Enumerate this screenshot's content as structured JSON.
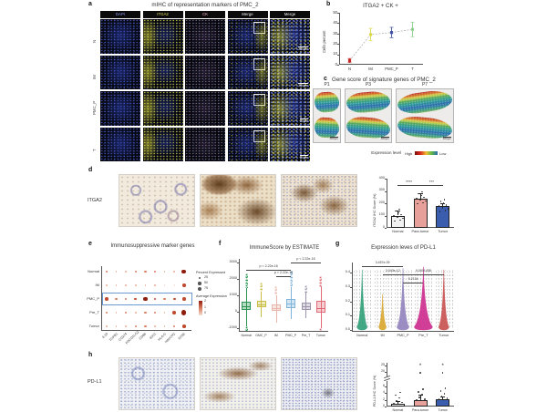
{
  "panel_a": {
    "label": "a",
    "title": "mIHC of representation markers of PMC_2",
    "columns": [
      "DAPI",
      "ITGA2",
      "CK",
      "Merge",
      "Merge"
    ],
    "column_colors": [
      "#8a97f0",
      "#e3e35a",
      "#f2b9c6",
      "#f5f5f5",
      "#f5f5f5"
    ],
    "rows": [
      "N",
      "IM",
      "PMC_P",
      "T"
    ],
    "scale_bars": [
      "200μm",
      "200μm",
      "20μm",
      "20μm"
    ]
  },
  "panel_b": {
    "label": "b",
    "title": "ITGA2 + CK +",
    "ylabel": "Cells percent",
    "chart": {
      "type": "scatter",
      "categories": [
        "N",
        "IM",
        "PMC_P",
        "T"
      ],
      "values": [
        4,
        29,
        31,
        34
      ],
      "errors": [
        2,
        6,
        5,
        7
      ],
      "colors": [
        "#c62828",
        "#ddd94e",
        "#3f51a5",
        "#8fcf8f"
      ],
      "yticks": [
        0,
        10,
        20,
        30,
        40,
        50
      ],
      "ylim": [
        0,
        50
      ]
    }
  },
  "panel_c": {
    "label": "c",
    "title": "Gene score of signature genes of PMC_2",
    "samples": [
      "P1",
      "P3",
      "P7"
    ],
    "scale_bar": "400μm",
    "legend_label": "Expression level",
    "legend_high": "High",
    "legend_low": "Low"
  },
  "panel_d": {
    "label": "d",
    "marker": "ITGA2",
    "chart": {
      "type": "bar",
      "ylabel": "ITGA2 IHC Score (%)",
      "categories": [
        "Normal",
        "Para-tumor",
        "Tumor"
      ],
      "values": [
        100,
        240,
        175
      ],
      "errors": [
        40,
        45,
        25
      ],
      "colors": [
        "#f2f2f2",
        "#e8a09a",
        "#3a5dae"
      ],
      "yticks": [
        0,
        100,
        200,
        300,
        400
      ],
      "ylim": [
        0,
        400
      ],
      "significance": [
        {
          "from": 0,
          "to": 1,
          "label": "****"
        },
        {
          "from": 1,
          "to": 2,
          "label": "***"
        }
      ]
    }
  },
  "panel_e": {
    "label": "e",
    "title": "Immunosuppressive marker genes",
    "rows": [
      "Normal",
      "IM",
      "PMC_P",
      "Pre_T",
      "Tumor"
    ],
    "highlight_row": "PMC_P",
    "genes": [
      "IL10",
      "TGFB1",
      "CD274",
      "PDCD1LG2",
      "CD86",
      "IDO1",
      "HLA-G",
      "HAVCR2",
      "NT5E"
    ],
    "dot_sizes": [
      [
        1.2,
        0.8,
        0.8,
        1.2,
        1.2,
        1.0,
        0.8,
        0.8,
        2.4
      ],
      [
        0.8,
        0.8,
        0.8,
        0.8,
        0.8,
        0.8,
        0.6,
        0.6,
        1.8
      ],
      [
        1.8,
        1.2,
        1.2,
        1.4,
        2.2,
        1.4,
        1.2,
        1.4,
        1.8
      ],
      [
        1.2,
        0.8,
        1.2,
        0.8,
        1.2,
        1.2,
        0.8,
        1.8,
        2.6
      ],
      [
        0.8,
        0.8,
        0.8,
        1.2,
        1.2,
        0.8,
        0.8,
        1.2,
        1.8
      ]
    ],
    "dot_colors": [
      [
        2,
        1,
        1,
        2,
        2,
        2,
        1,
        1,
        4
      ],
      [
        1,
        1,
        1,
        1,
        1,
        1,
        0,
        0,
        3
      ],
      [
        3,
        2,
        2,
        3,
        4,
        3,
        2,
        3,
        3
      ],
      [
        2,
        1,
        2,
        1,
        2,
        2,
        1,
        3,
        4
      ],
      [
        1,
        1,
        1,
        2,
        2,
        1,
        1,
        2,
        3
      ]
    ],
    "color_ramp": [
      "#f3ddd3",
      "#edb39e",
      "#d97d5f",
      "#c04a2e",
      "#8f1d0d"
    ],
    "legend": {
      "percent_title": "Percent Expressed",
      "percent_values": [
        "25",
        "50",
        "75"
      ],
      "avg_title": "Average Expression",
      "avg_values": [
        "2",
        "1",
        "0"
      ]
    }
  },
  "panel_f": {
    "label": "f",
    "title": "ImmuneScore by ESTIMATE",
    "chart": {
      "type": "box",
      "categories": [
        "Normal",
        "GMC_P",
        "IM",
        "PMC_P",
        "Pre_T",
        "Tumor"
      ],
      "colors": [
        "#27934f",
        "#c9bd45",
        "#e7b5a9",
        "#7fb3da",
        "#9b93ab",
        "#e06b76"
      ],
      "yticks": [
        -1000,
        0,
        1000,
        2000,
        3000
      ],
      "ylim": [
        -1200,
        3200
      ],
      "stats": [
        {
          "lo": -880,
          "q1": 120,
          "med": 340,
          "q3": 600,
          "hi": 1430,
          "out_hi": 2320,
          "out_lo": -1120
        },
        {
          "lo": -330,
          "q1": 270,
          "med": 465,
          "q3": 680,
          "hi": 1240,
          "out_hi": 1780
        },
        {
          "lo": -640,
          "q1": 60,
          "med": 225,
          "q3": 430,
          "hi": 980,
          "out_hi": 1530
        },
        {
          "lo": -430,
          "q1": 255,
          "med": 480,
          "q3": 800,
          "hi": 1520,
          "out_hi": 2470
        },
        {
          "lo": -370,
          "q1": 140,
          "med": 320,
          "q3": 560,
          "hi": 1150,
          "out_hi": 1620
        },
        {
          "lo": -960,
          "q1": -60,
          "med": 255,
          "q3": 660,
          "hi": 1520,
          "out_hi": 2180,
          "out_lo": -1150
        }
      ],
      "annotations": [
        {
          "from": "Normal",
          "to": "PMC_P",
          "label": "p < 2.22e-16"
        },
        {
          "from": "IM",
          "to": "PMC_P",
          "label": "p < 2.22e-16"
        },
        {
          "from": "PMC_P",
          "to": "Tumor",
          "label": "p < 2.22e-16"
        }
      ]
    }
  },
  "panel_g": {
    "label": "g",
    "title": "Expression leves of PD-L1",
    "chart": {
      "type": "violin",
      "categories": [
        "Normal",
        "IM",
        "PMC_P",
        "Pre_T",
        "Tumor"
      ],
      "colors": [
        "#2f9e77",
        "#d8a62b",
        "#9181bd",
        "#cc2a8d",
        "#c8504f"
      ],
      "yticks": [
        "0.0",
        "0.1",
        "0.2",
        "0.3",
        "0.4"
      ],
      "ylim": [
        0,
        0.47
      ],
      "violins": [
        {
          "peak": 0.42,
          "width": 11
        },
        {
          "peak": 0.25,
          "width": 8
        },
        {
          "peak": 0.43,
          "width": 13
        },
        {
          "peak": 0.44,
          "width": 20
        },
        {
          "peak": 0.42,
          "width": 11
        }
      ],
      "annotations": [
        {
          "from": "Normal",
          "to": "PMC_P",
          "label": "3.457e-09"
        },
        {
          "from": "IM",
          "to": "PMC_P",
          "label": "3.043e-12"
        },
        {
          "from": "PMC_P",
          "to": "Tumor",
          "label": "0.0001438"
        },
        {
          "from": "PMC_P",
          "to": "Pre_T",
          "label": "0.2134"
        }
      ]
    }
  },
  "panel_h": {
    "label": "h",
    "marker": "PD-L1",
    "chart": {
      "type": "bar",
      "ylabel": "PD-L1 IHC Score (%)",
      "categories": [
        "Normal",
        "Para-tumor",
        "Tumor"
      ],
      "values": [
        0.9,
        1.8,
        2.1
      ],
      "errors": [
        0.7,
        1.6,
        0.9
      ],
      "colors": [
        "#f2f2f2",
        "#e8a09a",
        "#3a5dae"
      ],
      "yticks": [
        0,
        2,
        4,
        6,
        20,
        25
      ],
      "axis_break": true,
      "outliers": [
        {
          "category": "Para-tumor",
          "value": 20
        },
        {
          "category": "Tumor",
          "value": 20
        }
      ],
      "significance": [
        {
          "category": "Para-tumor",
          "label": "*"
        },
        {
          "category": "Tumor",
          "label": "*"
        }
      ]
    }
  }
}
